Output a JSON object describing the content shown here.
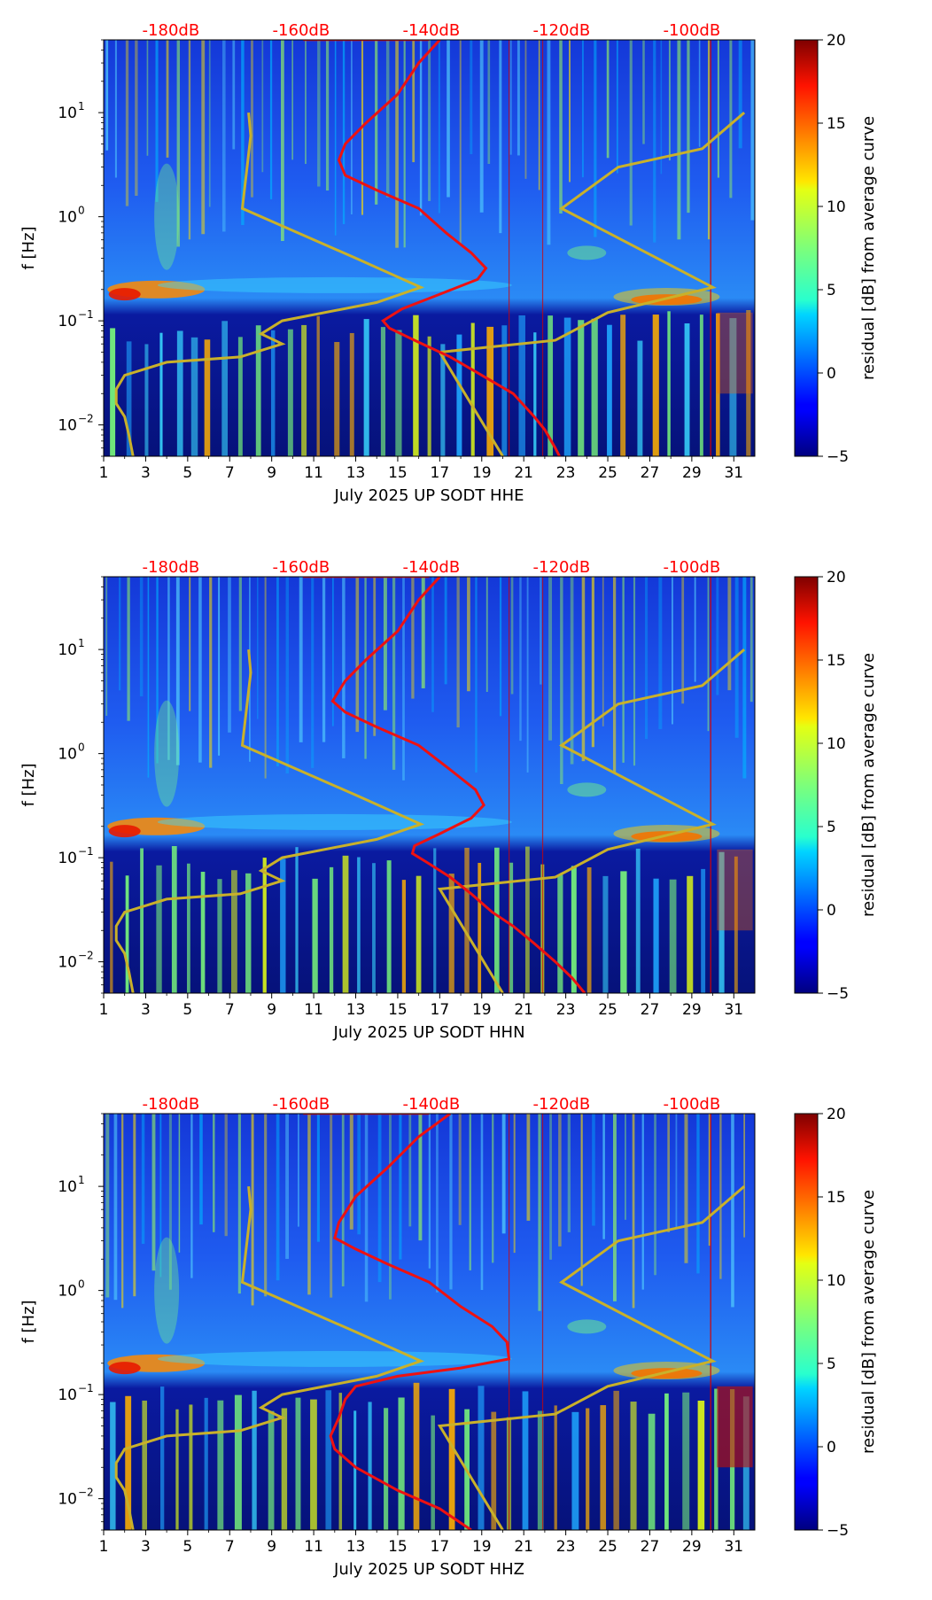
{
  "colors": {
    "ref_lines": "#ff0000",
    "psd_curve": "#ee1111",
    "noise_model": "#c9b12a",
    "axis": "#000000"
  },
  "chart_data": [
    {
      "type": "heatmap",
      "title": "",
      "xlabel": "July 2025 UP SODT  HHE",
      "ylabel": "f [Hz]",
      "x_range": [
        1,
        32
      ],
      "x_ticks": [
        "1",
        "3",
        "5",
        "7",
        "9",
        "11",
        "13",
        "15",
        "17",
        "19",
        "21",
        "23",
        "25",
        "27",
        "29",
        "31"
      ],
      "y_range_hz": [
        0.005,
        50
      ],
      "y_ticks": [
        {
          "exp": -2,
          "label": "10",
          "sup": "−2"
        },
        {
          "exp": -1,
          "label": "10",
          "sup": "−1"
        },
        {
          "exp": 0,
          "label": "10",
          "sup": "0"
        },
        {
          "exp": 1,
          "label": "10",
          "sup": "1"
        }
      ],
      "top_labels": [
        {
          "day": 4.2,
          "text": "-180dB"
        },
        {
          "day": 10.4,
          "text": "-160dB"
        },
        {
          "day": 16.6,
          "text": "-140dB"
        },
        {
          "day": 22.8,
          "text": "-120dB"
        },
        {
          "day": 29.0,
          "text": "-100dB"
        }
      ],
      "colorbar": {
        "label": "residual [dB] from average curve",
        "range": [
          -5,
          20
        ],
        "ticks": [
          "20",
          "15",
          "10",
          "5",
          "0",
          "−5"
        ]
      },
      "psd_curve": [
        [
          17,
          50
        ],
        [
          16,
          30
        ],
        [
          15,
          15
        ],
        [
          13.5,
          8
        ],
        [
          12.5,
          5
        ],
        [
          12.2,
          3.5
        ],
        [
          12.5,
          2.5
        ],
        [
          14,
          1.8
        ],
        [
          16,
          1.2
        ],
        [
          17.3,
          0.7
        ],
        [
          18.5,
          0.45
        ],
        [
          19.2,
          0.32
        ],
        [
          18.8,
          0.25
        ],
        [
          17,
          0.18
        ],
        [
          15.2,
          0.13
        ],
        [
          14.3,
          0.1
        ],
        [
          14.6,
          0.085
        ],
        [
          15.8,
          0.065
        ],
        [
          17.5,
          0.045
        ],
        [
          19,
          0.03
        ],
        [
          20.5,
          0.02
        ],
        [
          21.5,
          0.012
        ],
        [
          22,
          0.009
        ],
        [
          22.5,
          0.006
        ],
        [
          22.7,
          0.005
        ]
      ],
      "noise_model": [
        [
          2.4,
          0.005
        ],
        [
          2.2,
          0.008
        ],
        [
          2.0,
          0.012
        ],
        [
          1.6,
          0.016
        ],
        [
          1.6,
          0.022
        ],
        [
          2.0,
          0.03
        ],
        [
          4,
          0.04
        ],
        [
          7.5,
          0.045
        ],
        [
          9.5,
          0.06
        ],
        [
          8.5,
          0.075
        ],
        [
          9.5,
          0.1
        ],
        [
          14,
          0.15
        ],
        [
          16.1,
          0.21
        ],
        [
          13,
          0.4
        ],
        [
          7.6,
          1.2
        ],
        [
          8.0,
          6
        ],
        [
          7.9,
          10
        ]
      ],
      "noise_model_high": [
        [
          20,
          0.005
        ],
        [
          17,
          0.05
        ],
        [
          22.5,
          0.065
        ],
        [
          25,
          0.12
        ],
        [
          30,
          0.21
        ],
        [
          22.8,
          1.2
        ],
        [
          25.5,
          3
        ],
        [
          29.5,
          4.5
        ],
        [
          31.5,
          10
        ]
      ],
      "noise_model_top": [
        [
          10.5,
          50
        ],
        [
          16.5,
          50
        ]
      ]
    },
    {
      "type": "heatmap",
      "title": "",
      "xlabel": "July 2025 UP SODT  HHN",
      "ylabel": "f [Hz]",
      "x_range": [
        1,
        32
      ],
      "x_ticks": [
        "1",
        "3",
        "5",
        "7",
        "9",
        "11",
        "13",
        "15",
        "17",
        "19",
        "21",
        "23",
        "25",
        "27",
        "29",
        "31"
      ],
      "y_range_hz": [
        0.005,
        50
      ],
      "y_ticks": [
        {
          "exp": -2,
          "label": "10",
          "sup": "−2"
        },
        {
          "exp": -1,
          "label": "10",
          "sup": "−1"
        },
        {
          "exp": 0,
          "label": "10",
          "sup": "0"
        },
        {
          "exp": 1,
          "label": "10",
          "sup": "1"
        }
      ],
      "top_labels": [
        {
          "day": 4.2,
          "text": "-180dB"
        },
        {
          "day": 10.4,
          "text": "-160dB"
        },
        {
          "day": 16.6,
          "text": "-140dB"
        },
        {
          "day": 22.8,
          "text": "-120dB"
        },
        {
          "day": 29.0,
          "text": "-100dB"
        }
      ],
      "colorbar": {
        "label": "residual [dB] from average curve",
        "range": [
          -5,
          20
        ],
        "ticks": [
          "20",
          "15",
          "10",
          "5",
          "0",
          "−5"
        ]
      },
      "psd_curve": [
        [
          17,
          50
        ],
        [
          16,
          30
        ],
        [
          15,
          15
        ],
        [
          13.5,
          8
        ],
        [
          12.5,
          5
        ],
        [
          11.9,
          3.2
        ],
        [
          12.5,
          2.5
        ],
        [
          14,
          1.8
        ],
        [
          16,
          1.2
        ],
        [
          17.5,
          0.7
        ],
        [
          18.7,
          0.45
        ],
        [
          19.1,
          0.32
        ],
        [
          18.5,
          0.24
        ],
        [
          17,
          0.17
        ],
        [
          15.8,
          0.13
        ],
        [
          15.7,
          0.11
        ],
        [
          16.4,
          0.09
        ],
        [
          17.5,
          0.065
        ],
        [
          18.5,
          0.045
        ],
        [
          19.5,
          0.03
        ],
        [
          20.5,
          0.022
        ],
        [
          21.5,
          0.015
        ],
        [
          22.5,
          0.01
        ],
        [
          23.3,
          0.007
        ],
        [
          23.9,
          0.005
        ]
      ],
      "noise_model": [
        [
          2.4,
          0.005
        ],
        [
          2.2,
          0.008
        ],
        [
          2.0,
          0.012
        ],
        [
          1.6,
          0.016
        ],
        [
          1.6,
          0.022
        ],
        [
          2.0,
          0.03
        ],
        [
          4,
          0.04
        ],
        [
          7.5,
          0.045
        ],
        [
          9.5,
          0.06
        ],
        [
          8.5,
          0.075
        ],
        [
          9.5,
          0.1
        ],
        [
          14,
          0.15
        ],
        [
          16.1,
          0.21
        ],
        [
          13,
          0.4
        ],
        [
          7.6,
          1.2
        ],
        [
          8.0,
          6
        ],
        [
          7.9,
          10
        ]
      ],
      "noise_model_high": [
        [
          20,
          0.005
        ],
        [
          17,
          0.05
        ],
        [
          22.5,
          0.065
        ],
        [
          25,
          0.12
        ],
        [
          30,
          0.21
        ],
        [
          22.8,
          1.2
        ],
        [
          25.5,
          3
        ],
        [
          29.5,
          4.5
        ],
        [
          31.5,
          10
        ]
      ],
      "noise_model_top": [
        [
          10.5,
          50
        ],
        [
          16.5,
          50
        ]
      ]
    },
    {
      "type": "heatmap",
      "title": "",
      "xlabel": "July 2025 UP SODT  HHZ",
      "ylabel": "f [Hz]",
      "x_range": [
        1,
        32
      ],
      "x_ticks": [
        "1",
        "3",
        "5",
        "7",
        "9",
        "11",
        "13",
        "15",
        "17",
        "19",
        "21",
        "23",
        "25",
        "27",
        "29",
        "31"
      ],
      "y_range_hz": [
        0.005,
        50
      ],
      "y_ticks": [
        {
          "exp": -2,
          "label": "10",
          "sup": "−2"
        },
        {
          "exp": -1,
          "label": "10",
          "sup": "−1"
        },
        {
          "exp": 0,
          "label": "10",
          "sup": "0"
        },
        {
          "exp": 1,
          "label": "10",
          "sup": "1"
        }
      ],
      "top_labels": [
        {
          "day": 4.2,
          "text": "-180dB"
        },
        {
          "day": 10.4,
          "text": "-160dB"
        },
        {
          "day": 16.6,
          "text": "-140dB"
        },
        {
          "day": 22.8,
          "text": "-120dB"
        },
        {
          "day": 29.0,
          "text": "-100dB"
        }
      ],
      "colorbar": {
        "label": "residual [dB] from average curve",
        "range": [
          -5,
          20
        ],
        "ticks": [
          "20",
          "15",
          "10",
          "5",
          "0",
          "−5"
        ]
      },
      "psd_curve": [
        [
          17.5,
          50
        ],
        [
          16,
          30
        ],
        [
          14.5,
          15
        ],
        [
          13,
          8
        ],
        [
          12.2,
          4.5
        ],
        [
          12,
          3.2
        ],
        [
          13,
          2.5
        ],
        [
          14.5,
          1.8
        ],
        [
          16.5,
          1.2
        ],
        [
          18,
          0.7
        ],
        [
          19.5,
          0.45
        ],
        [
          20.2,
          0.32
        ],
        [
          20.3,
          0.22
        ],
        [
          18,
          0.18
        ],
        [
          15,
          0.15
        ],
        [
          13,
          0.12
        ],
        [
          12.5,
          0.09
        ],
        [
          12.2,
          0.06
        ],
        [
          11.8,
          0.04
        ],
        [
          12,
          0.03
        ],
        [
          13,
          0.02
        ],
        [
          15,
          0.012
        ],
        [
          17,
          0.008
        ],
        [
          18.5,
          0.005
        ]
      ],
      "noise_model": [
        [
          2.4,
          0.005
        ],
        [
          2.2,
          0.008
        ],
        [
          2.0,
          0.012
        ],
        [
          1.6,
          0.016
        ],
        [
          1.6,
          0.022
        ],
        [
          2.0,
          0.03
        ],
        [
          4,
          0.04
        ],
        [
          7.5,
          0.045
        ],
        [
          9.5,
          0.06
        ],
        [
          8.5,
          0.075
        ],
        [
          9.5,
          0.1
        ],
        [
          14,
          0.15
        ],
        [
          16.1,
          0.21
        ],
        [
          13,
          0.4
        ],
        [
          7.6,
          1.2
        ],
        [
          8.0,
          6
        ],
        [
          7.9,
          10
        ]
      ],
      "noise_model_high": [
        [
          20,
          0.005
        ],
        [
          17,
          0.05
        ],
        [
          22.5,
          0.065
        ],
        [
          25,
          0.12
        ],
        [
          30,
          0.21
        ],
        [
          22.8,
          1.2
        ],
        [
          25.5,
          3
        ],
        [
          29.5,
          4.5
        ],
        [
          31.5,
          10
        ]
      ],
      "noise_model_top": [
        [
          10.5,
          50
        ],
        [
          16.5,
          50
        ]
      ]
    }
  ]
}
